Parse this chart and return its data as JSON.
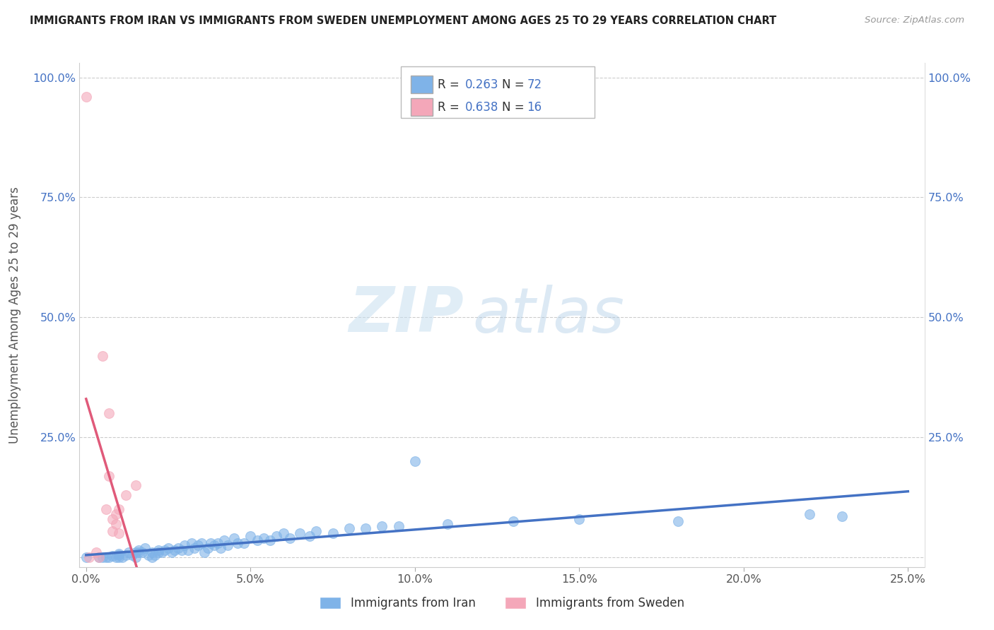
{
  "title": "IMMIGRANTS FROM IRAN VS IMMIGRANTS FROM SWEDEN UNEMPLOYMENT AMONG AGES 25 TO 29 YEARS CORRELATION CHART",
  "source": "Source: ZipAtlas.com",
  "ylabel": "Unemployment Among Ages 25 to 29 years",
  "xlim": [
    -0.002,
    0.255
  ],
  "ylim": [
    -0.02,
    1.03
  ],
  "xtick_vals": [
    0.0,
    0.05,
    0.1,
    0.15,
    0.2,
    0.25
  ],
  "ytick_vals": [
    0.0,
    0.25,
    0.5,
    0.75,
    1.0
  ],
  "xticklabels": [
    "0.0%",
    "5.0%",
    "10.0%",
    "15.0%",
    "20.0%",
    "25.0%"
  ],
  "yticklabels": [
    "",
    "25.0%",
    "50.0%",
    "75.0%",
    "100.0%"
  ],
  "iran_color": "#7fb3e8",
  "sweden_color": "#f4a7b9",
  "iran_line_color": "#4472c4",
  "sweden_line_color": "#e05a7a",
  "sweden_dash_color": "#f4a7b9",
  "iran_R": 0.263,
  "iran_N": 72,
  "sweden_R": 0.638,
  "sweden_N": 16,
  "legend_iran": "Immigrants from Iran",
  "legend_sweden": "Immigrants from Sweden",
  "iran_x": [
    0.0,
    0.004,
    0.005,
    0.006,
    0.007,
    0.008,
    0.009,
    0.01,
    0.01,
    0.01,
    0.011,
    0.012,
    0.013,
    0.014,
    0.015,
    0.015,
    0.016,
    0.016,
    0.017,
    0.018,
    0.019,
    0.02,
    0.02,
    0.021,
    0.022,
    0.022,
    0.023,
    0.024,
    0.025,
    0.026,
    0.027,
    0.028,
    0.029,
    0.03,
    0.031,
    0.032,
    0.033,
    0.034,
    0.035,
    0.036,
    0.037,
    0.038,
    0.039,
    0.04,
    0.041,
    0.042,
    0.043,
    0.045,
    0.046,
    0.048,
    0.05,
    0.052,
    0.054,
    0.056,
    0.058,
    0.06,
    0.062,
    0.065,
    0.068,
    0.07,
    0.075,
    0.08,
    0.085,
    0.09,
    0.095,
    0.1,
    0.11,
    0.13,
    0.15,
    0.18,
    0.22,
    0.23
  ],
  "iran_y": [
    0.0,
    0.0,
    0.0,
    0.0,
    0.0,
    0.003,
    0.0,
    0.0,
    0.005,
    0.008,
    0.0,
    0.005,
    0.01,
    0.005,
    0.01,
    0.0,
    0.01,
    0.015,
    0.01,
    0.02,
    0.005,
    0.01,
    0.0,
    0.005,
    0.01,
    0.015,
    0.01,
    0.015,
    0.02,
    0.01,
    0.015,
    0.02,
    0.015,
    0.025,
    0.015,
    0.03,
    0.02,
    0.025,
    0.03,
    0.01,
    0.02,
    0.03,
    0.025,
    0.03,
    0.02,
    0.035,
    0.025,
    0.04,
    0.03,
    0.03,
    0.045,
    0.035,
    0.04,
    0.035,
    0.045,
    0.05,
    0.04,
    0.05,
    0.045,
    0.055,
    0.05,
    0.06,
    0.06,
    0.065,
    0.065,
    0.2,
    0.07,
    0.075,
    0.08,
    0.075,
    0.09,
    0.085
  ],
  "sweden_x": [
    0.0,
    0.001,
    0.003,
    0.004,
    0.005,
    0.006,
    0.007,
    0.007,
    0.008,
    0.008,
    0.009,
    0.009,
    0.01,
    0.01,
    0.012,
    0.015
  ],
  "sweden_y": [
    0.96,
    0.0,
    0.01,
    0.0,
    0.42,
    0.1,
    0.3,
    0.17,
    0.055,
    0.08,
    0.09,
    0.07,
    0.1,
    0.05,
    0.13,
    0.15
  ]
}
